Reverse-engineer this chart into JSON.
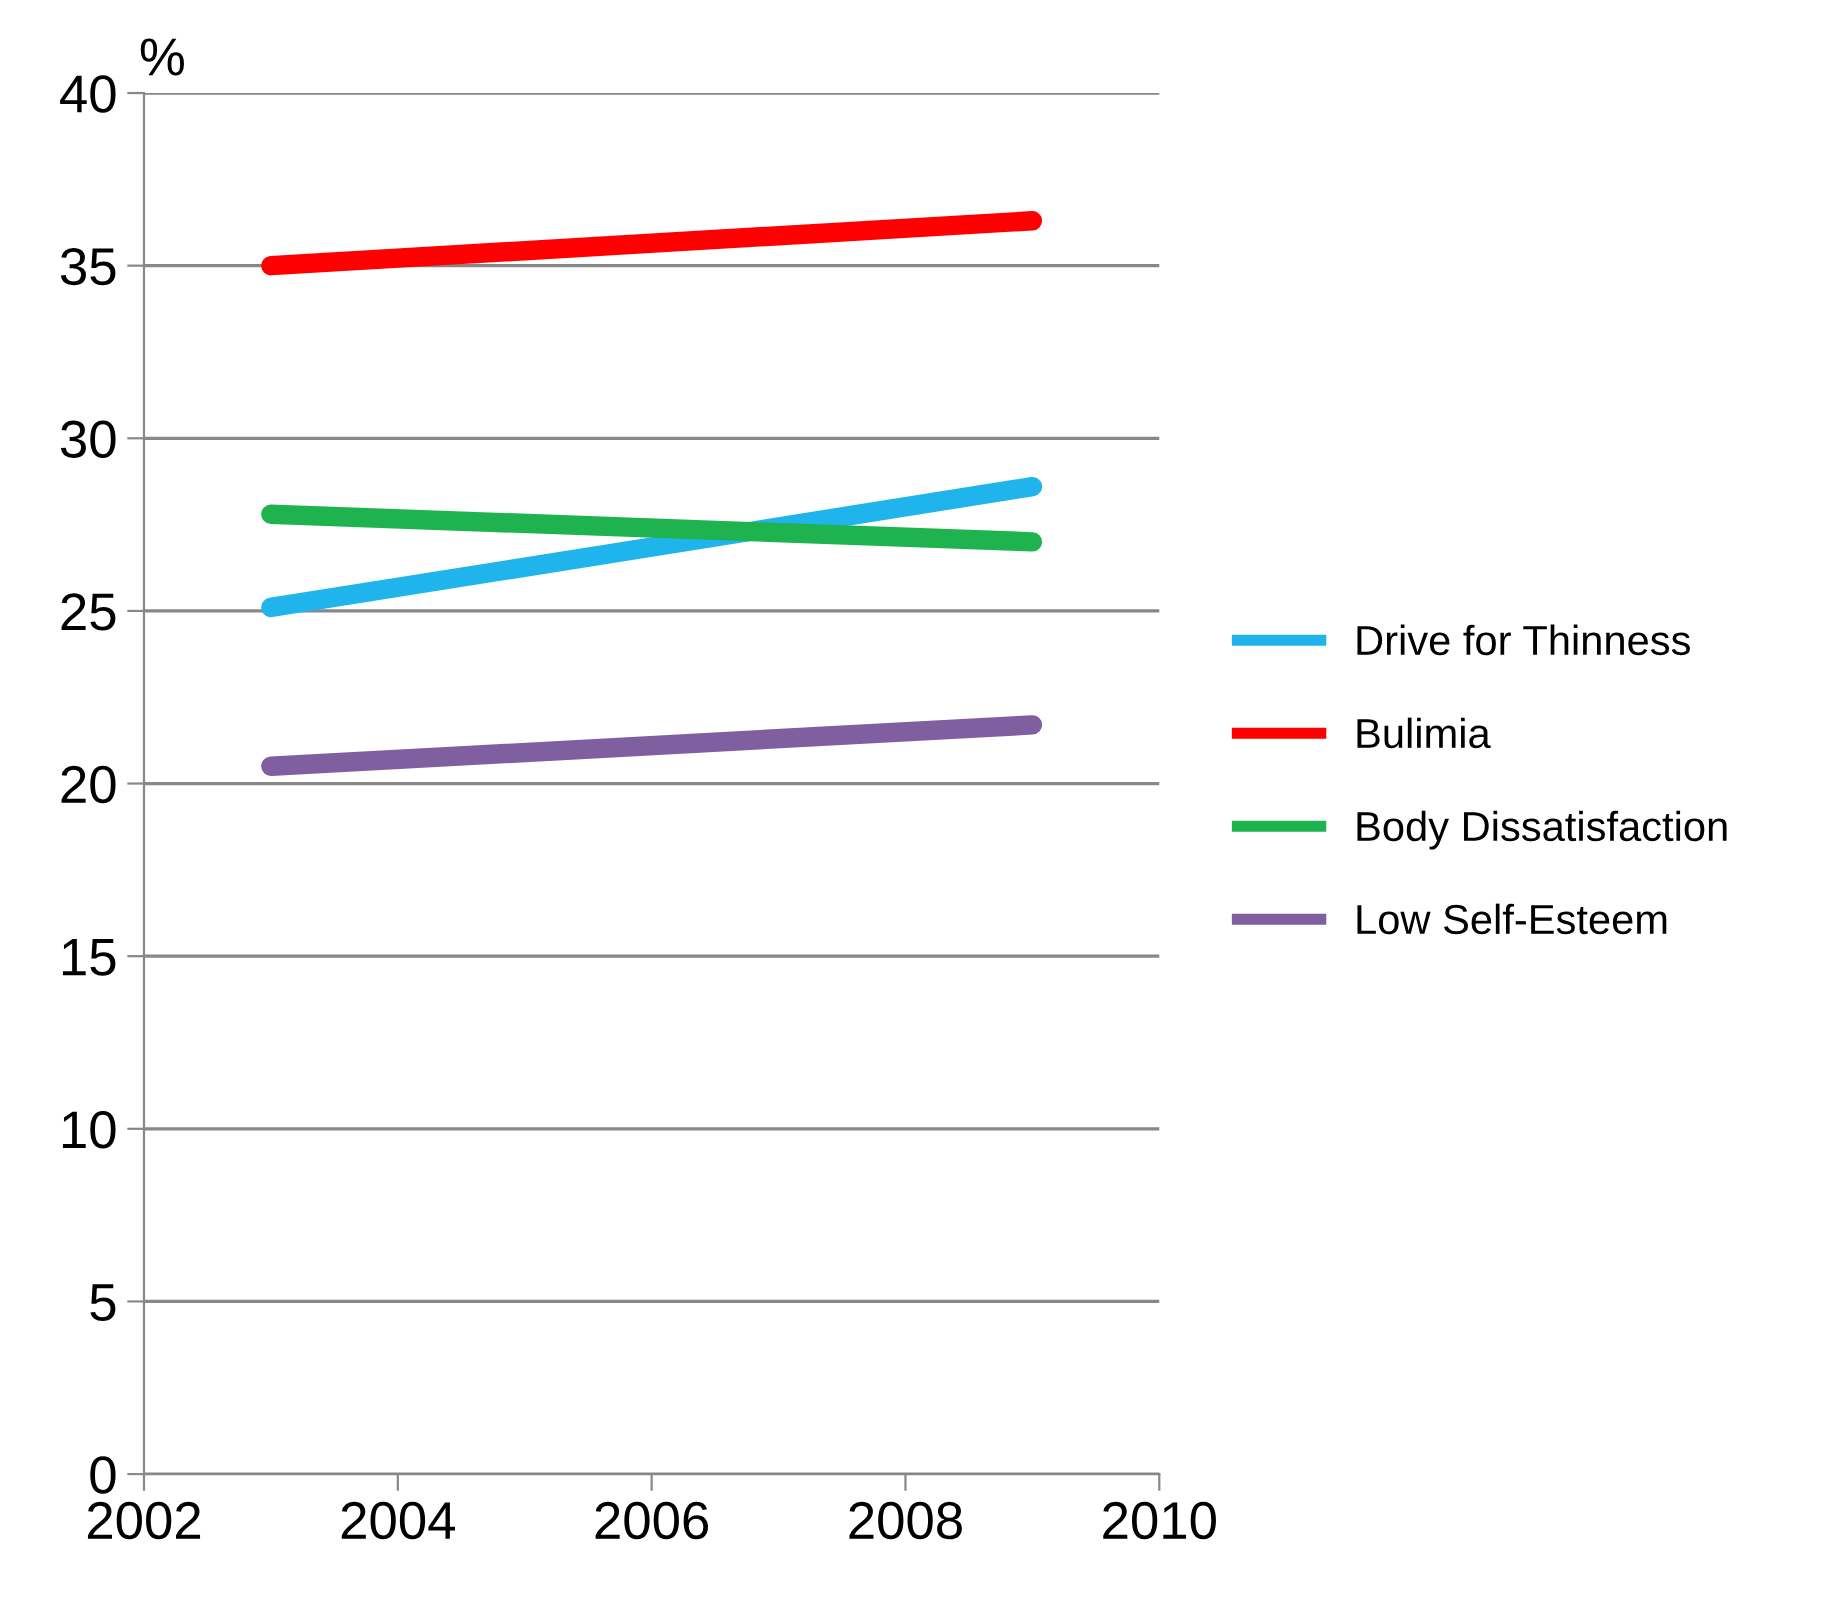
{
  "chart_data": {
    "type": "line",
    "ylabel": "%",
    "x": [
      2003,
      2009
    ],
    "series": [
      {
        "name": "Drive for Thinness",
        "color": "#1fb4ec",
        "values": [
          25.1,
          28.6
        ]
      },
      {
        "name": "Bulimia",
        "color": "#ff0000",
        "values": [
          35.0,
          36.3
        ]
      },
      {
        "name": "Body Dissatisfaction",
        "color": "#1fb34f",
        "values": [
          27.8,
          27.0
        ]
      },
      {
        "name": "Low Self-Esteem",
        "color": "#7f5fa0",
        "values": [
          20.5,
          21.7
        ]
      }
    ],
    "xlim": [
      2002,
      2010
    ],
    "xticks": [
      2002,
      2004,
      2006,
      2008,
      2010
    ],
    "ylim": [
      0,
      40
    ],
    "yticks": [
      0,
      5,
      10,
      15,
      20,
      25,
      30,
      35,
      40
    ],
    "grid": "y",
    "legend": "right",
    "marker": "none",
    "line_style": "solid"
  }
}
